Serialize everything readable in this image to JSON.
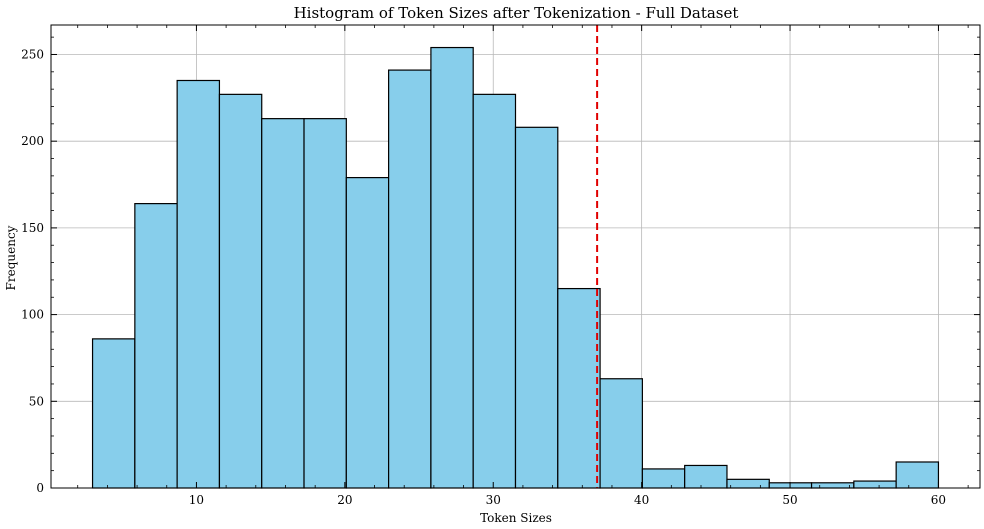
{
  "chart_data": {
    "type": "bar",
    "title": "Histogram of Token Sizes after Tokenization - Full Dataset",
    "xlabel": "Token Sizes",
    "ylabel": "Frequency",
    "bins": [
      {
        "x0": 3.0,
        "x1": 5.85,
        "value": 86
      },
      {
        "x0": 5.85,
        "x1": 8.7,
        "value": 164
      },
      {
        "x0": 8.7,
        "x1": 11.55,
        "value": 235
      },
      {
        "x0": 11.55,
        "x1": 14.4,
        "value": 227
      },
      {
        "x0": 14.4,
        "x1": 17.25,
        "value": 213
      },
      {
        "x0": 17.25,
        "x1": 20.1,
        "value": 213
      },
      {
        "x0": 20.1,
        "x1": 22.95,
        "value": 179
      },
      {
        "x0": 22.95,
        "x1": 25.8,
        "value": 241
      },
      {
        "x0": 25.8,
        "x1": 28.65,
        "value": 254
      },
      {
        "x0": 28.65,
        "x1": 31.5,
        "value": 227
      },
      {
        "x0": 31.5,
        "x1": 34.35,
        "value": 208
      },
      {
        "x0": 34.35,
        "x1": 37.2,
        "value": 115
      },
      {
        "x0": 37.2,
        "x1": 40.05,
        "value": 63
      },
      {
        "x0": 40.05,
        "x1": 42.9,
        "value": 11
      },
      {
        "x0": 42.9,
        "x1": 45.75,
        "value": 13
      },
      {
        "x0": 45.75,
        "x1": 48.6,
        "value": 5
      },
      {
        "x0": 48.6,
        "x1": 51.45,
        "value": 3
      },
      {
        "x0": 51.45,
        "x1": 54.3,
        "value": 3
      },
      {
        "x0": 54.3,
        "x1": 57.15,
        "value": 4
      },
      {
        "x0": 57.15,
        "x1": 60.0,
        "value": 15
      }
    ],
    "threshold_line": {
      "x": 37,
      "color": "#e00000",
      "style": "dashed"
    },
    "xlim": [
      0.2,
      62.8
    ],
    "ylim": [
      0,
      267
    ],
    "xticks": [
      10,
      20,
      30,
      40,
      50,
      60
    ],
    "yticks": [
      0,
      50,
      100,
      150,
      200,
      250
    ],
    "bar_color": "#87ceeb",
    "edge_color": "#000000",
    "grid": true
  }
}
